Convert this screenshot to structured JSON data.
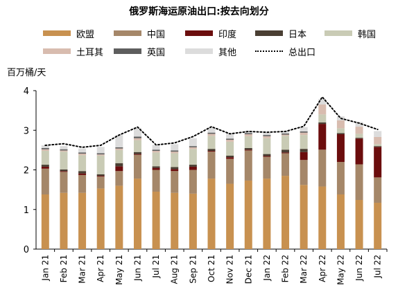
{
  "chart_data": {
    "type": "bar",
    "title": "俄罗斯海运原油出口:按去向划分",
    "ylabel": "百万桶/天",
    "xlabel": "",
    "ylim": [
      0,
      4
    ],
    "yticks": [
      0,
      1,
      2,
      3,
      4
    ],
    "stacked": true,
    "grid": false,
    "legend_position": "top",
    "categories": [
      "Jan 21",
      "Feb 21",
      "Mar 21",
      "Apr 21",
      "May 21",
      "Jun 21",
      "Jul 21",
      "Aug 21",
      "Sep 21",
      "Oct 21",
      "Nov 21",
      "Dec 21",
      "Jan 22",
      "Feb 22",
      "Mar 22",
      "Apr 22",
      "May 22",
      "Jun 22",
      "Jul 22"
    ],
    "series": [
      {
        "name": "欧盟",
        "color": "#c89150",
        "values": [
          1.38,
          1.42,
          1.42,
          1.53,
          1.6,
          1.78,
          1.45,
          1.42,
          1.4,
          1.78,
          1.65,
          1.73,
          1.78,
          1.85,
          1.62,
          1.58,
          1.38,
          1.24,
          1.17
        ]
      },
      {
        "name": "中国",
        "color": "#a58769",
        "values": [
          0.65,
          0.53,
          0.45,
          0.3,
          0.37,
          0.6,
          0.55,
          0.55,
          0.6,
          0.68,
          0.63,
          0.76,
          0.55,
          0.57,
          0.63,
          0.93,
          0.82,
          0.9,
          0.64
        ]
      },
      {
        "name": "印度",
        "color": "#6b0d0d",
        "values": [
          0.05,
          0.02,
          0.04,
          0.02,
          0.12,
          0.02,
          0.05,
          0.05,
          0.08,
          0.02,
          0.04,
          0.02,
          0.02,
          0.02,
          0.2,
          0.65,
          0.7,
          0.65,
          0.77
        ]
      },
      {
        "name": "日本",
        "color": "#4a3f33",
        "values": [
          0.05,
          0.04,
          0.06,
          0.04,
          0.08,
          0.05,
          0.04,
          0.05,
          0.05,
          0.05,
          0.04,
          0.04,
          0.05,
          0.07,
          0.08,
          0.04,
          0.03,
          0.02,
          0.02
        ]
      },
      {
        "name": "韩国",
        "color": "#c9cbb5",
        "values": [
          0.35,
          0.45,
          0.4,
          0.47,
          0.33,
          0.3,
          0.35,
          0.35,
          0.4,
          0.33,
          0.35,
          0.3,
          0.4,
          0.35,
          0.35,
          0.2,
          0.12,
          0.1,
          0.05
        ]
      },
      {
        "name": "土耳其",
        "color": "#d8bcaf",
        "values": [
          0.04,
          0.03,
          0.04,
          0.03,
          0.04,
          0.05,
          0.04,
          0.04,
          0.04,
          0.05,
          0.05,
          0.05,
          0.05,
          0.03,
          0.06,
          0.25,
          0.2,
          0.18,
          0.18
        ]
      },
      {
        "name": "英国",
        "color": "#5e5e5e",
        "values": [
          0.03,
          0.03,
          0.03,
          0.03,
          0.03,
          0.04,
          0.03,
          0.03,
          0.03,
          0.03,
          0.03,
          0.03,
          0.03,
          0.03,
          0.03,
          0.0,
          0.0,
          0.0,
          0.0
        ]
      },
      {
        "name": "其他",
        "color": "#dcdcdc",
        "values": [
          0.07,
          0.08,
          0.1,
          0.16,
          0.31,
          0.22,
          0.12,
          0.16,
          0.2,
          0.13,
          0.14,
          0.06,
          0.06,
          0.06,
          0.11,
          0.14,
          0.1,
          0.12,
          0.15
        ]
      }
    ],
    "total_series": {
      "name": "总出口",
      "style": "dotted",
      "values": [
        2.62,
        2.66,
        2.57,
        2.62,
        2.88,
        3.08,
        2.63,
        2.68,
        2.84,
        3.09,
        2.91,
        2.97,
        2.95,
        2.97,
        3.1,
        3.84,
        3.3,
        3.18,
        3.02
      ]
    }
  }
}
